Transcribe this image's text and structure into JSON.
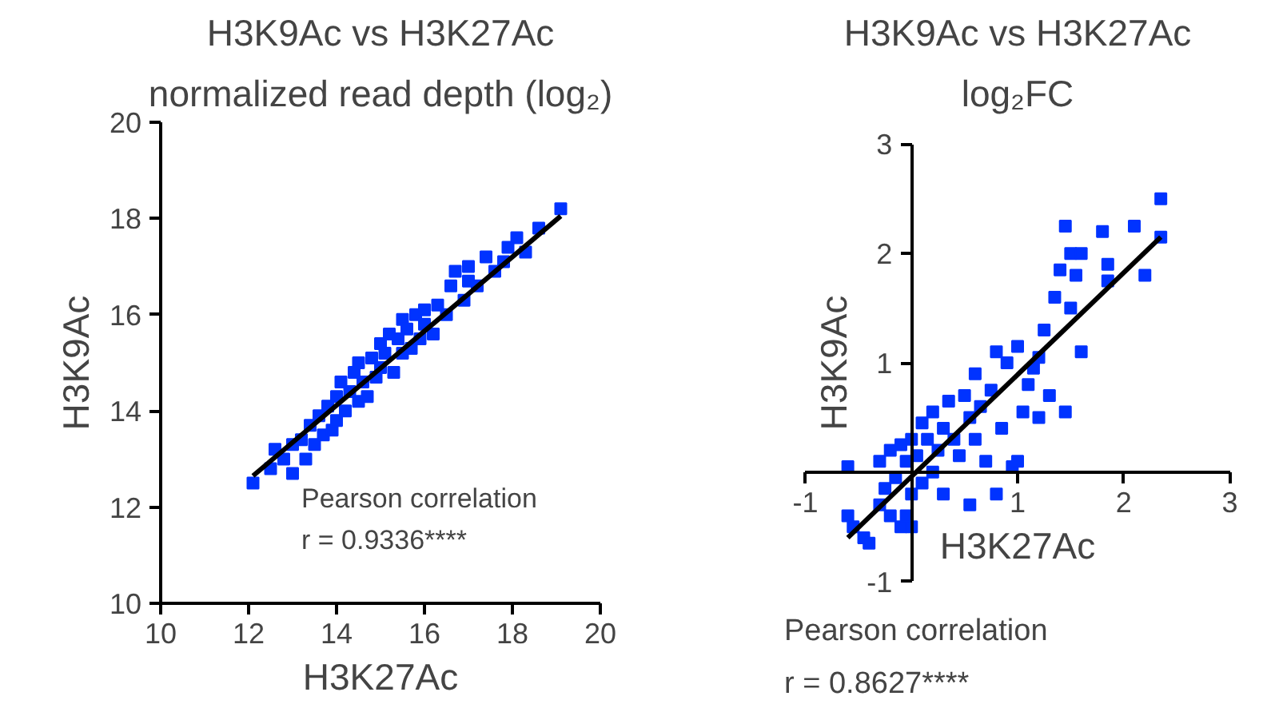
{
  "chart_data": [
    {
      "type": "scatter",
      "title": "H3K9Ac vs H3K27Ac",
      "subtitle": "normalized read depth (log₂)",
      "xlabel": "H3K27Ac",
      "ylabel": "H3K9Ac",
      "annotations": [
        "Pearson correlation",
        "r = 0.9336****"
      ],
      "xlim": [
        10,
        20
      ],
      "ylim": [
        10,
        20
      ],
      "xticks": [
        10,
        12,
        14,
        16,
        18,
        20
      ],
      "yticks": [
        10,
        12,
        14,
        16,
        18,
        20
      ],
      "grid": false,
      "marker": "square",
      "series": [
        {
          "color": "#0033ff",
          "x": [
            12.1,
            12.5,
            12.6,
            12.8,
            13.0,
            13.0,
            13.2,
            13.3,
            13.4,
            13.5,
            13.6,
            13.7,
            13.8,
            13.9,
            14.0,
            14.0,
            14.1,
            14.2,
            14.3,
            14.4,
            14.5,
            14.5,
            14.6,
            14.7,
            14.8,
            14.9,
            15.0,
            15.0,
            15.1,
            15.2,
            15.3,
            15.4,
            15.5,
            15.5,
            15.6,
            15.7,
            15.8,
            15.9,
            16.0,
            16.0,
            16.2,
            16.3,
            16.5,
            16.6,
            16.7,
            16.9,
            17.0,
            17.0,
            17.2,
            17.4,
            17.6,
            17.8,
            17.9,
            18.1,
            18.3,
            18.6,
            19.1
          ],
          "values": [
            12.5,
            12.8,
            13.2,
            13.0,
            12.7,
            13.3,
            13.4,
            13.0,
            13.7,
            13.3,
            13.9,
            13.5,
            14.1,
            13.6,
            14.3,
            13.8,
            14.6,
            14.0,
            14.4,
            14.8,
            14.2,
            15.0,
            14.6,
            14.3,
            15.1,
            14.7,
            15.4,
            14.9,
            15.2,
            15.6,
            14.8,
            15.5,
            15.9,
            15.2,
            15.7,
            15.3,
            16.0,
            15.5,
            16.1,
            15.8,
            15.6,
            16.2,
            16.0,
            16.6,
            16.9,
            16.3,
            16.7,
            17.0,
            16.6,
            17.2,
            16.9,
            17.1,
            17.4,
            17.6,
            17.3,
            17.8,
            18.2
          ]
        },
        {
          "type": "line",
          "marker": "none",
          "color": "#000000",
          "x": [
            12.1,
            19.1
          ],
          "values": [
            12.65,
            18.05
          ]
        }
      ]
    },
    {
      "type": "scatter",
      "title": "H3K9Ac vs H3K27Ac",
      "subtitle": "log₂FC",
      "xlabel": "H3K27Ac",
      "ylabel": "H3K9Ac",
      "annotations": [
        "Pearson correlation",
        "r = 0.8627****"
      ],
      "xlim": [
        -1,
        3
      ],
      "ylim": [
        -1,
        3
      ],
      "xticks": [
        -1,
        1,
        2,
        3
      ],
      "yticks": [
        -1,
        1,
        2,
        3
      ],
      "grid": false,
      "marker": "square",
      "series": [
        {
          "color": "#0033ff",
          "x": [
            -0.6,
            -0.55,
            -0.45,
            -0.4,
            -0.6,
            -0.3,
            -0.3,
            -0.25,
            -0.2,
            -0.2,
            -0.15,
            -0.1,
            -0.1,
            -0.05,
            0,
            0,
            0.05,
            0.1,
            0.1,
            0.15,
            0.2,
            0.2,
            0.25,
            0.3,
            0.3,
            0.35,
            0.4,
            0.45,
            0.5,
            0.55,
            0.6,
            0.6,
            0.65,
            0.7,
            0.75,
            0.8,
            0.8,
            0.85,
            0.9,
            0.95,
            1.0,
            1.05,
            1.1,
            1.15,
            1.2,
            1.2,
            1.25,
            1.3,
            1.35,
            1.4,
            1.45,
            1.5,
            1.5,
            1.55,
            1.6,
            1.45,
            1.6,
            1.8,
            1.85,
            1.85,
            2.1,
            2.2,
            2.35,
            2.35,
            1.0,
            0.55,
            0.0,
            -0.05
          ],
          "values": [
            -0.4,
            -0.5,
            -0.6,
            -0.65,
            0.05,
            -0.3,
            0.1,
            -0.15,
            0.2,
            -0.4,
            -0.05,
            0.25,
            -0.5,
            0.1,
            0.3,
            -0.2,
            0.15,
            0.45,
            -0.1,
            0.3,
            0.0,
            0.55,
            0.2,
            0.4,
            -0.2,
            0.65,
            0.3,
            0.15,
            0.7,
            0.5,
            0.3,
            0.9,
            0.6,
            0.1,
            0.75,
            1.1,
            -0.2,
            0.4,
            1.0,
            0.05,
            1.15,
            0.55,
            0.8,
            0.95,
            0.5,
            1.05,
            1.3,
            0.7,
            1.6,
            1.85,
            2.25,
            2.0,
            1.5,
            1.8,
            2.0,
            0.55,
            1.1,
            2.2,
            1.9,
            1.75,
            2.25,
            1.8,
            2.5,
            2.15,
            0.1,
            -0.3,
            -0.5,
            -0.4
          ]
        },
        {
          "type": "line",
          "marker": "none",
          "color": "#000000",
          "x": [
            -0.6,
            2.35
          ],
          "values": [
            -0.6,
            2.15
          ]
        }
      ]
    }
  ]
}
